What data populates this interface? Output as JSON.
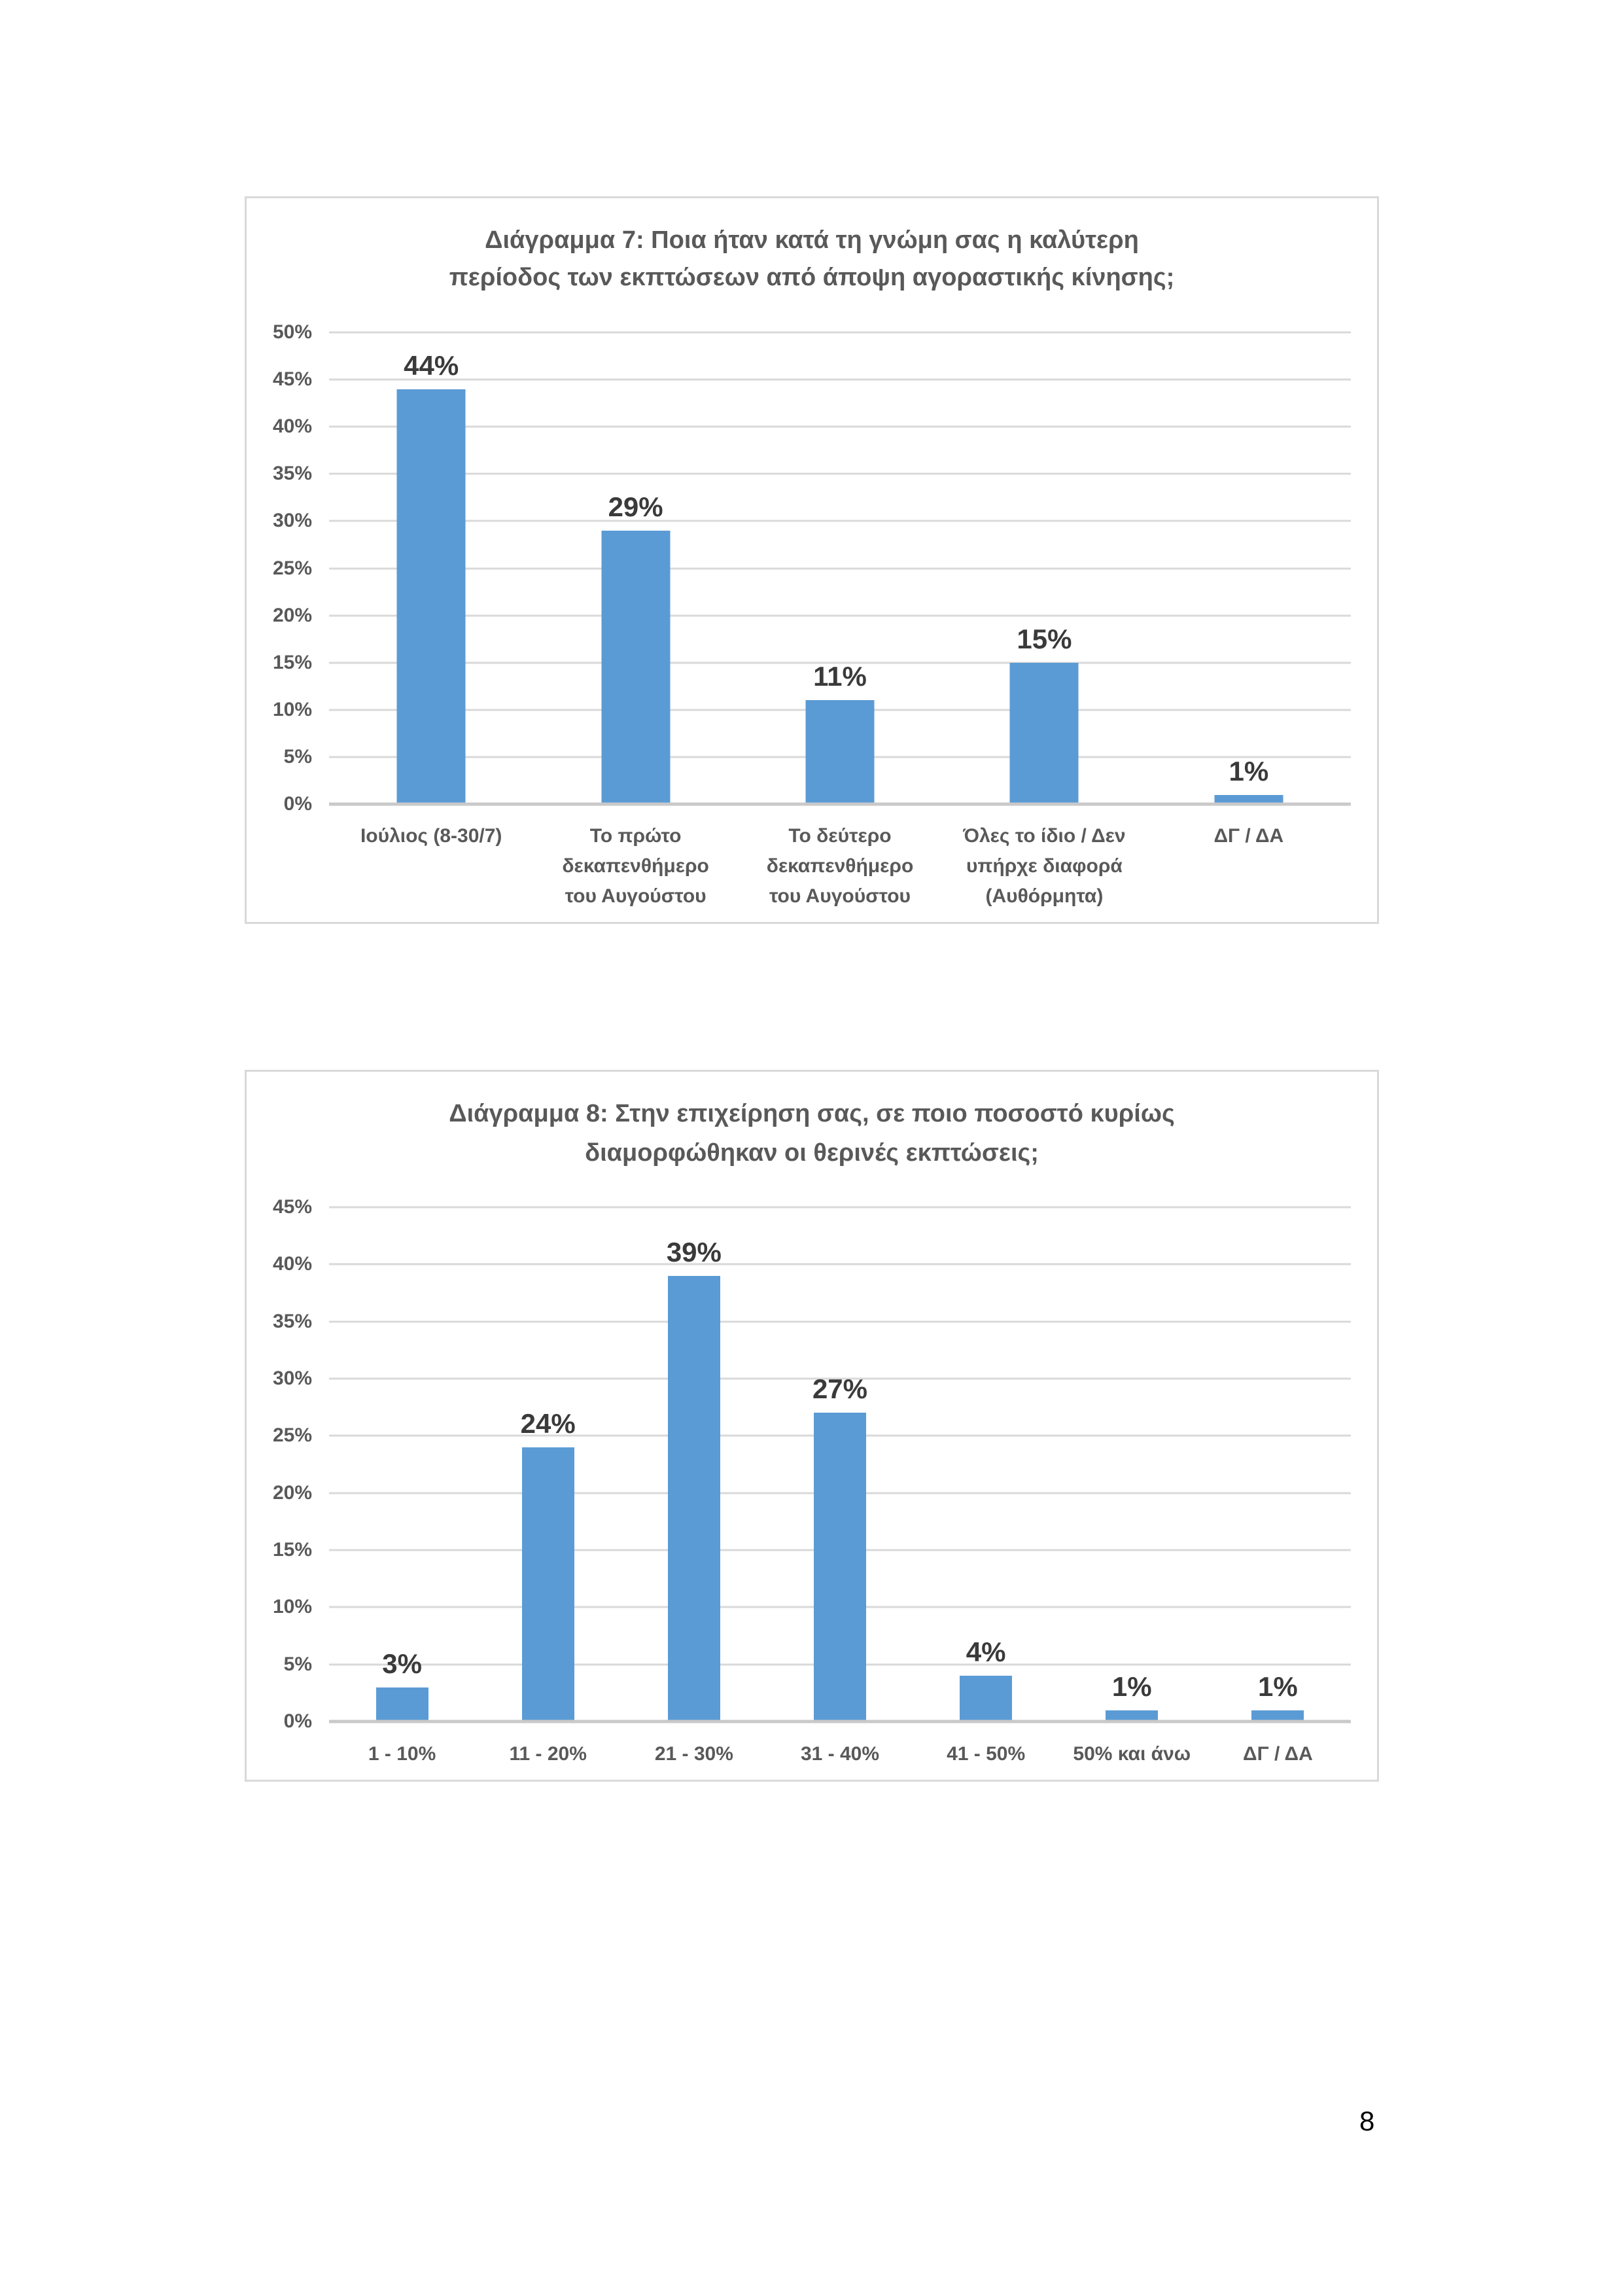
{
  "page": {
    "number": "8"
  },
  "chart_data": [
    {
      "type": "bar",
      "title": "Διάγραμμα 7: Ποια ήταν κατά τη γνώμη σας η καλύτερη περίοδος των εκπτώσεων από άποψη αγοραστικής κίνησης;",
      "title_lines": [
        "Διάγραμμα 7: Ποια ήταν κατά τη γνώμη σας η καλύτερη",
        "περίοδος των εκπτώσεων από άποψη αγοραστικής κίνησης;"
      ],
      "categories": [
        "Ιούλιος (8-30/7)",
        "Το πρώτο δεκαπενθήμερο του Αυγούστου",
        "Το δεύτερο δεκαπενθήμερο του Αυγούστου",
        "Όλες το ίδιο / Δεν υπήρχε διαφορά (Αυθόρμητα)",
        "ΔΓ / ΔΑ"
      ],
      "category_lines": [
        [
          "Ιούλιος (8-30/7)"
        ],
        [
          "Το πρώτο",
          "δεκαπενθήμερο",
          "του Αυγούστου"
        ],
        [
          "Το δεύτερο",
          "δεκαπενθήμερο",
          "του Αυγούστου"
        ],
        [
          "Όλες το ίδιο / Δεν",
          "υπήρχε διαφορά",
          "(Αυθόρμητα)"
        ],
        [
          "ΔΓ / ΔΑ"
        ]
      ],
      "values": [
        44,
        29,
        11,
        15,
        1
      ],
      "data_labels": [
        "44%",
        "29%",
        "11%",
        "15%",
        "1%"
      ],
      "xlabel": "",
      "ylabel": "",
      "ylim": [
        0,
        50
      ],
      "ytick_step": 5,
      "ytick_labels": [
        "0%",
        "5%",
        "10%",
        "15%",
        "20%",
        "25%",
        "30%",
        "35%",
        "40%",
        "45%",
        "50%"
      ],
      "grid": true,
      "legend": "none",
      "bar_color": "#5b9bd5"
    },
    {
      "type": "bar",
      "title": "Διάγραμμα 8: Στην επιχείρηση σας, σε ποιο ποσοστό κυρίως διαμορφώθηκαν οι θερινές εκπτώσεις;",
      "title_lines": [
        "Διάγραμμα 8: Στην επιχείρηση σας, σε ποιο ποσοστό κυρίως",
        "διαμορφώθηκαν οι θερινές εκπτώσεις;"
      ],
      "categories": [
        "1 - 10%",
        "11 - 20%",
        "21 - 30%",
        "31 - 40%",
        "41 - 50%",
        "50% και άνω",
        "ΔΓ / ΔΑ"
      ],
      "category_lines": [
        [
          "1 - 10%"
        ],
        [
          "11 - 20%"
        ],
        [
          "21 - 30%"
        ],
        [
          "31 - 40%"
        ],
        [
          "41 - 50%"
        ],
        [
          "50% και άνω"
        ],
        [
          "ΔΓ / ΔΑ"
        ]
      ],
      "values": [
        3,
        24,
        39,
        27,
        4,
        1,
        1
      ],
      "data_labels": [
        "3%",
        "24%",
        "39%",
        "27%",
        "4%",
        "1%",
        "1%"
      ],
      "xlabel": "",
      "ylabel": "",
      "ylim": [
        0,
        45
      ],
      "ytick_step": 5,
      "ytick_labels": [
        "0%",
        "5%",
        "10%",
        "15%",
        "20%",
        "25%",
        "30%",
        "35%",
        "40%",
        "45%"
      ],
      "grid": true,
      "legend": "none",
      "bar_color": "#5b9bd5"
    }
  ]
}
